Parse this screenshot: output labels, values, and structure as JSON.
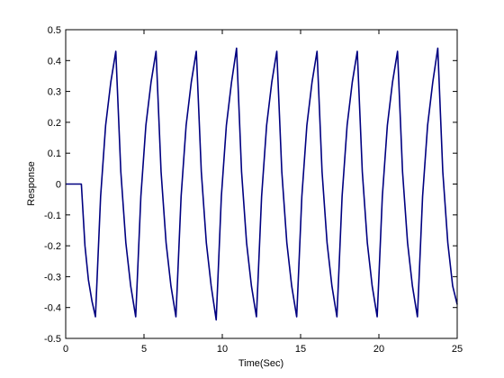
{
  "chart_data": {
    "type": "line",
    "x_label": "Time(Sec)",
    "y_label": "Response",
    "color": "#000080",
    "x": [
      0,
      1.0,
      1.23,
      1.45,
      1.68,
      1.9,
      2.23,
      2.55,
      2.88,
      3.2,
      3.52,
      3.84,
      4.15,
      4.47,
      4.8,
      5.12,
      5.45,
      5.77,
      6.09,
      6.41,
      6.72,
      7.04,
      7.37,
      7.69,
      8.02,
      8.34,
      8.66,
      8.98,
      9.29,
      9.61,
      9.94,
      10.26,
      10.59,
      10.91,
      11.23,
      11.55,
      11.86,
      12.18,
      12.51,
      12.83,
      13.16,
      13.48,
      13.8,
      14.12,
      14.43,
      14.75,
      15.08,
      15.4,
      15.73,
      16.05,
      16.37,
      16.69,
      17.0,
      17.32,
      17.65,
      17.97,
      18.3,
      18.62,
      18.94,
      19.26,
      19.57,
      19.89,
      20.22,
      20.54,
      20.87,
      21.19,
      21.51,
      21.83,
      22.14,
      22.46,
      22.79,
      23.11,
      23.44,
      23.76,
      24.08,
      24.4,
      24.71,
      25
    ],
    "values": [
      0,
      0,
      -0.2,
      -0.31,
      -0.38,
      -0.43,
      -0.04,
      0.19,
      0.33,
      0.43,
      0.04,
      -0.19,
      -0.33,
      -0.43,
      -0.04,
      0.19,
      0.33,
      0.43,
      0.04,
      -0.19,
      -0.33,
      -0.43,
      -0.04,
      0.19,
      0.33,
      0.43,
      0.04,
      -0.19,
      -0.33,
      -0.44,
      -0.04,
      0.19,
      0.33,
      0.44,
      0.04,
      -0.19,
      -0.33,
      -0.43,
      -0.04,
      0.19,
      0.33,
      0.43,
      0.04,
      -0.19,
      -0.33,
      -0.43,
      -0.04,
      0.19,
      0.33,
      0.43,
      0.04,
      -0.19,
      -0.33,
      -0.43,
      -0.04,
      0.19,
      0.33,
      0.43,
      0.04,
      -0.19,
      -0.33,
      -0.43,
      -0.04,
      0.19,
      0.33,
      0.43,
      0.04,
      -0.19,
      -0.33,
      -0.43,
      -0.04,
      0.19,
      0.33,
      0.44,
      0.04,
      -0.19,
      -0.33,
      -0.39
    ],
    "xlim": [
      0,
      25
    ],
    "xticks": [
      0,
      5,
      10,
      15,
      20,
      25
    ],
    "ylim": [
      -0.5,
      0.5
    ],
    "yticks": [
      -0.5,
      -0.4,
      -0.3,
      -0.2,
      -0.1,
      0,
      0.1,
      0.2,
      0.3,
      0.4,
      0.5
    ]
  }
}
